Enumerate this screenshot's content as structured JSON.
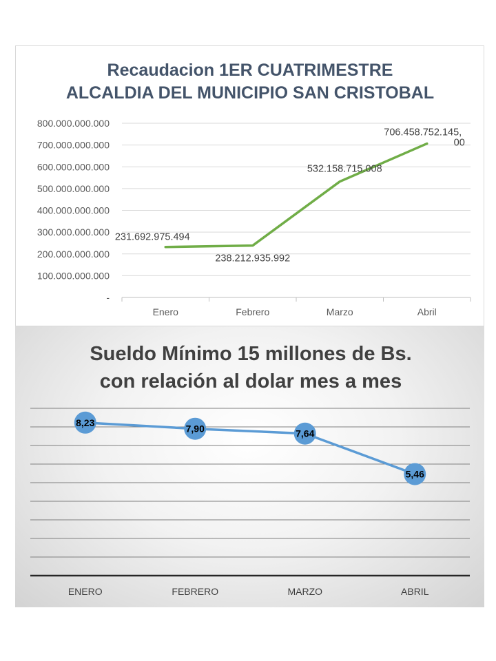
{
  "chart_data": [
    {
      "type": "line",
      "title_lines": [
        "Recaudacion 1ER CUATRIMESTRE",
        "ALCALDIA DEL MUNICIPIO SAN CRISTOBAL"
      ],
      "categories": [
        "Enero",
        "Febrero",
        "Marzo",
        "Abril"
      ],
      "values": [
        231692975494,
        238212935992,
        532158715008,
        706458752145
      ],
      "data_labels": [
        "231.692.975.494",
        "238.212.935.992",
        "532.158.715.008",
        "706.458.752.145,\n00"
      ],
      "ylim": [
        0,
        800000000000
      ],
      "y_ticks": [
        0,
        100000000000,
        200000000000,
        300000000000,
        400000000000,
        500000000000,
        600000000000,
        700000000000,
        800000000000
      ],
      "y_tick_labels": [
        "-",
        "100.000.000.000",
        "200.000.000.000",
        "300.000.000.000",
        "400.000.000.000",
        "500.000.000.000",
        "600.000.000.000",
        "700.000.000.000",
        "800.000.000.000"
      ],
      "grid": true,
      "line_color": "#70ad47"
    },
    {
      "type": "line",
      "title_lines": [
        "Sueldo Mínimo 15 millones de Bs.",
        "con relación al dolar mes a mes"
      ],
      "categories": [
        "ENERO",
        "FEBRERO",
        "MARZO",
        "ABRIL"
      ],
      "values": [
        8.23,
        7.9,
        7.64,
        5.46
      ],
      "data_labels": [
        "8,23",
        "7,90",
        "7,64",
        "5,46"
      ],
      "ylim": [
        0,
        9
      ],
      "grid": true,
      "line_color": "#5b9bd5"
    }
  ]
}
